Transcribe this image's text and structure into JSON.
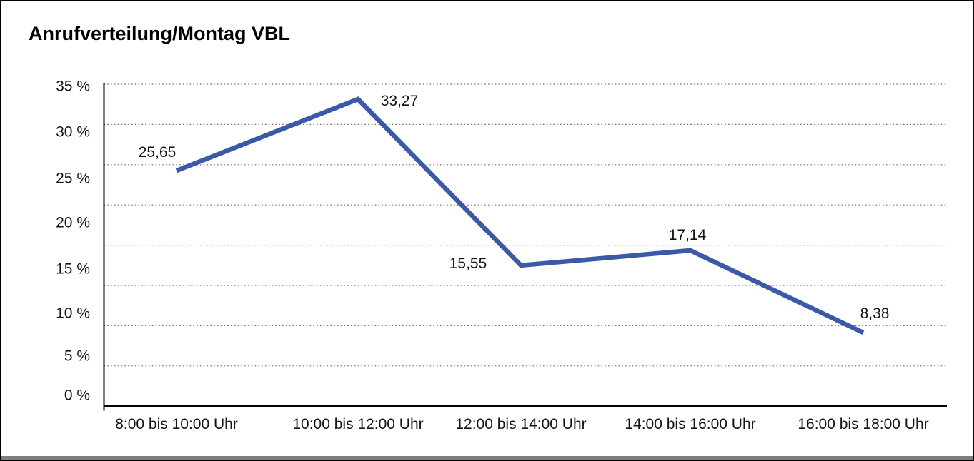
{
  "chart_data": {
    "type": "line",
    "title": "Anrufverteilung/Montag VBL",
    "categories": [
      "8:00 bis 10:00 Uhr",
      "10:00 bis 12:00 Uhr",
      "12:00 bis 14:00 Uhr",
      "14:00 bis 16:00 Uhr",
      "16:00 bis 18:00 Uhr"
    ],
    "values": [
      25.65,
      33.27,
      15.55,
      17.14,
      8.38
    ],
    "value_labels": [
      "25,65",
      "33,27",
      "15,55",
      "17,14",
      "8,38"
    ],
    "y_tick_labels": [
      "35 %",
      "30 %",
      "25 %",
      "20 %",
      "15 %",
      "10 %",
      "5 %",
      "0 %"
    ],
    "xlabel": "",
    "ylabel": "",
    "ylim": [
      0,
      35
    ],
    "grid": "horizontal-dotted",
    "legend": "none",
    "colors": {
      "line": "#3A5AA8",
      "axis": "#000000",
      "gridline": "#6e6e6e",
      "text": "#141414",
      "frame_border": "#000000",
      "bottom_bar": "#7f7f7f",
      "background": "#ffffff"
    }
  }
}
